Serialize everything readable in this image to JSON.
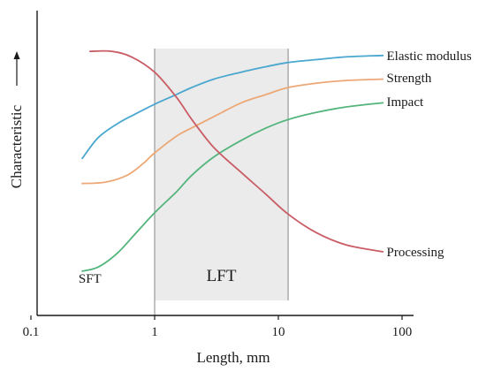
{
  "chart_data": {
    "type": "line",
    "xscale": "log",
    "xlim": [
      0.1,
      100
    ],
    "ylim": [
      0,
      10
    ],
    "xlabel": "Length, mm",
    "ylabel": "Characteristic",
    "x_ticks": [
      {
        "value": 0.1,
        "label": "0.1"
      },
      {
        "value": 1,
        "label": "1"
      },
      {
        "value": 10,
        "label": "10"
      },
      {
        "value": 100,
        "label": "100"
      }
    ],
    "regions": [
      {
        "label": "LFT",
        "x_range": [
          1,
          12
        ],
        "fill": "#ebebeb",
        "edge": "#9a9a9a"
      }
    ],
    "annotations": [
      {
        "text": "SFT",
        "x": 0.3,
        "y": 0.8
      }
    ],
    "grid": false,
    "legend": "none",
    "series": [
      {
        "name": "Elastic modulus",
        "color": "#4aa7cf",
        "points": [
          [
            0.26,
            5.1
          ],
          [
            0.35,
            5.85
          ],
          [
            0.5,
            6.35
          ],
          [
            0.7,
            6.7
          ],
          [
            1.0,
            7.05
          ],
          [
            1.5,
            7.4
          ],
          [
            2.0,
            7.65
          ],
          [
            3.0,
            7.95
          ],
          [
            5.0,
            8.2
          ],
          [
            8.0,
            8.4
          ],
          [
            12.0,
            8.55
          ],
          [
            20.0,
            8.65
          ],
          [
            35.0,
            8.75
          ],
          [
            70.0,
            8.8
          ]
        ],
        "label_pos": [
          75,
          8.8
        ]
      },
      {
        "name": "Strength",
        "color": "#eca876",
        "points": [
          [
            0.26,
            4.2
          ],
          [
            0.4,
            4.25
          ],
          [
            0.6,
            4.5
          ],
          [
            0.8,
            4.9
          ],
          [
            1.0,
            5.3
          ],
          [
            1.5,
            5.9
          ],
          [
            2.0,
            6.2
          ],
          [
            3.0,
            6.6
          ],
          [
            5.0,
            7.1
          ],
          [
            8.0,
            7.4
          ],
          [
            12.0,
            7.65
          ],
          [
            20.0,
            7.8
          ],
          [
            35.0,
            7.9
          ],
          [
            70.0,
            7.95
          ]
        ],
        "label_pos": [
          75,
          8.0
        ]
      },
      {
        "name": "Impact",
        "color": "#53b47c",
        "points": [
          [
            0.26,
            1.05
          ],
          [
            0.35,
            1.2
          ],
          [
            0.5,
            1.7
          ],
          [
            0.7,
            2.4
          ],
          [
            1.0,
            3.15
          ],
          [
            1.5,
            3.9
          ],
          [
            2.0,
            4.5
          ],
          [
            3.0,
            5.15
          ],
          [
            5.0,
            5.75
          ],
          [
            8.0,
            6.2
          ],
          [
            12.0,
            6.5
          ],
          [
            20.0,
            6.75
          ],
          [
            35.0,
            6.95
          ],
          [
            70.0,
            7.1
          ]
        ],
        "label_pos": [
          75,
          7.15
        ]
      },
      {
        "name": "Processing",
        "color": "#c95d66",
        "points": [
          [
            0.3,
            8.95
          ],
          [
            0.45,
            8.95
          ],
          [
            0.65,
            8.75
          ],
          [
            1.0,
            8.2
          ],
          [
            1.5,
            7.3
          ],
          [
            2.0,
            6.5
          ],
          [
            3.0,
            5.5
          ],
          [
            5.0,
            4.6
          ],
          [
            8.0,
            3.8
          ],
          [
            12.0,
            3.1
          ],
          [
            20.0,
            2.45
          ],
          [
            35.0,
            2.0
          ],
          [
            70.0,
            1.75
          ]
        ],
        "label_pos": [
          75,
          1.75
        ]
      }
    ]
  }
}
